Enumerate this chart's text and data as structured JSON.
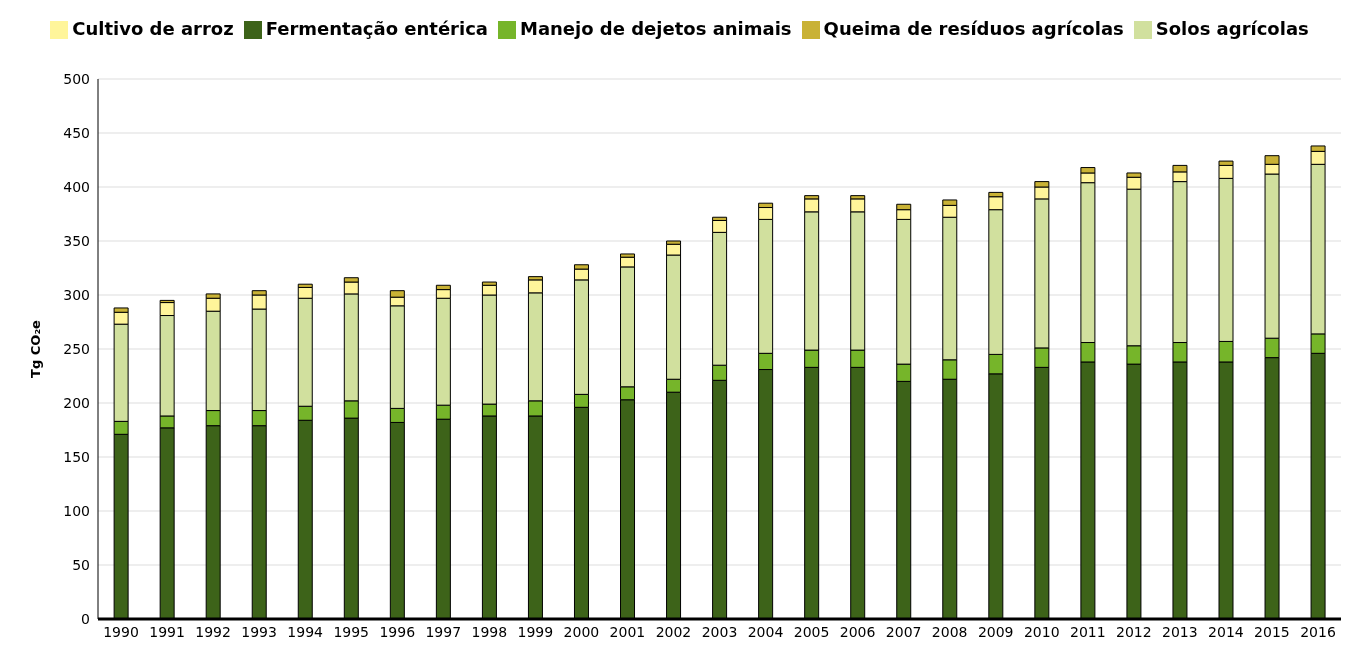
{
  "chart_data": {
    "type": "bar",
    "stacked": true,
    "ylabel": "Tg CO₂e",
    "categories": [
      "1990",
      "1991",
      "1992",
      "1993",
      "1994",
      "1995",
      "1996",
      "1997",
      "1998",
      "1999",
      "2000",
      "2001",
      "2002",
      "2003",
      "2004",
      "2005",
      "2006",
      "2007",
      "2008",
      "2009",
      "2010",
      "2011",
      "2012",
      "2013",
      "2014",
      "2015",
      "2016"
    ],
    "series": [
      {
        "name": "Fermentação entérica",
        "color": "#3d6319",
        "values": [
          171,
          177,
          179,
          179,
          184,
          186,
          182,
          185,
          188,
          188,
          196,
          203,
          210,
          221,
          231,
          233,
          233,
          220,
          222,
          227,
          233,
          238,
          236,
          238,
          238,
          242,
          246
        ]
      },
      {
        "name": "Manejo de dejetos animais",
        "color": "#76b52a",
        "values": [
          12,
          11,
          14,
          14,
          13,
          16,
          13,
          13,
          11,
          14,
          12,
          12,
          12,
          14,
          15,
          16,
          16,
          16,
          18,
          18,
          18,
          18,
          17,
          18,
          19,
          18,
          18
        ]
      },
      {
        "name": "Solos agrícolas",
        "color": "#d1e09e",
        "values": [
          90,
          93,
          92,
          94,
          100,
          99,
          95,
          99,
          101,
          100,
          106,
          111,
          115,
          123,
          124,
          128,
          128,
          134,
          132,
          134,
          138,
          148,
          145,
          149,
          151,
          152,
          157
        ]
      },
      {
        "name": "Cultivo de arroz",
        "color": "#fff59a",
        "values": [
          11,
          12,
          12,
          13,
          10,
          11,
          8,
          8,
          9,
          12,
          10,
          9,
          10,
          11,
          11,
          12,
          12,
          9,
          11,
          12,
          11,
          9,
          11,
          9,
          12,
          9,
          12
        ]
      },
      {
        "name": "Queima de resíduos agrícolas",
        "color": "#c9b235",
        "values": [
          4,
          2,
          4,
          4,
          3,
          4,
          6,
          4,
          3,
          3,
          4,
          3,
          3,
          3,
          4,
          3,
          3,
          5,
          5,
          4,
          5,
          5,
          4,
          6,
          4,
          8,
          5
        ]
      }
    ],
    "ylim": [
      0,
      500
    ],
    "yticks": [
      0,
      50,
      100,
      150,
      200,
      250,
      300,
      350,
      400,
      450,
      500
    ],
    "grid": "y",
    "legend": "top"
  }
}
